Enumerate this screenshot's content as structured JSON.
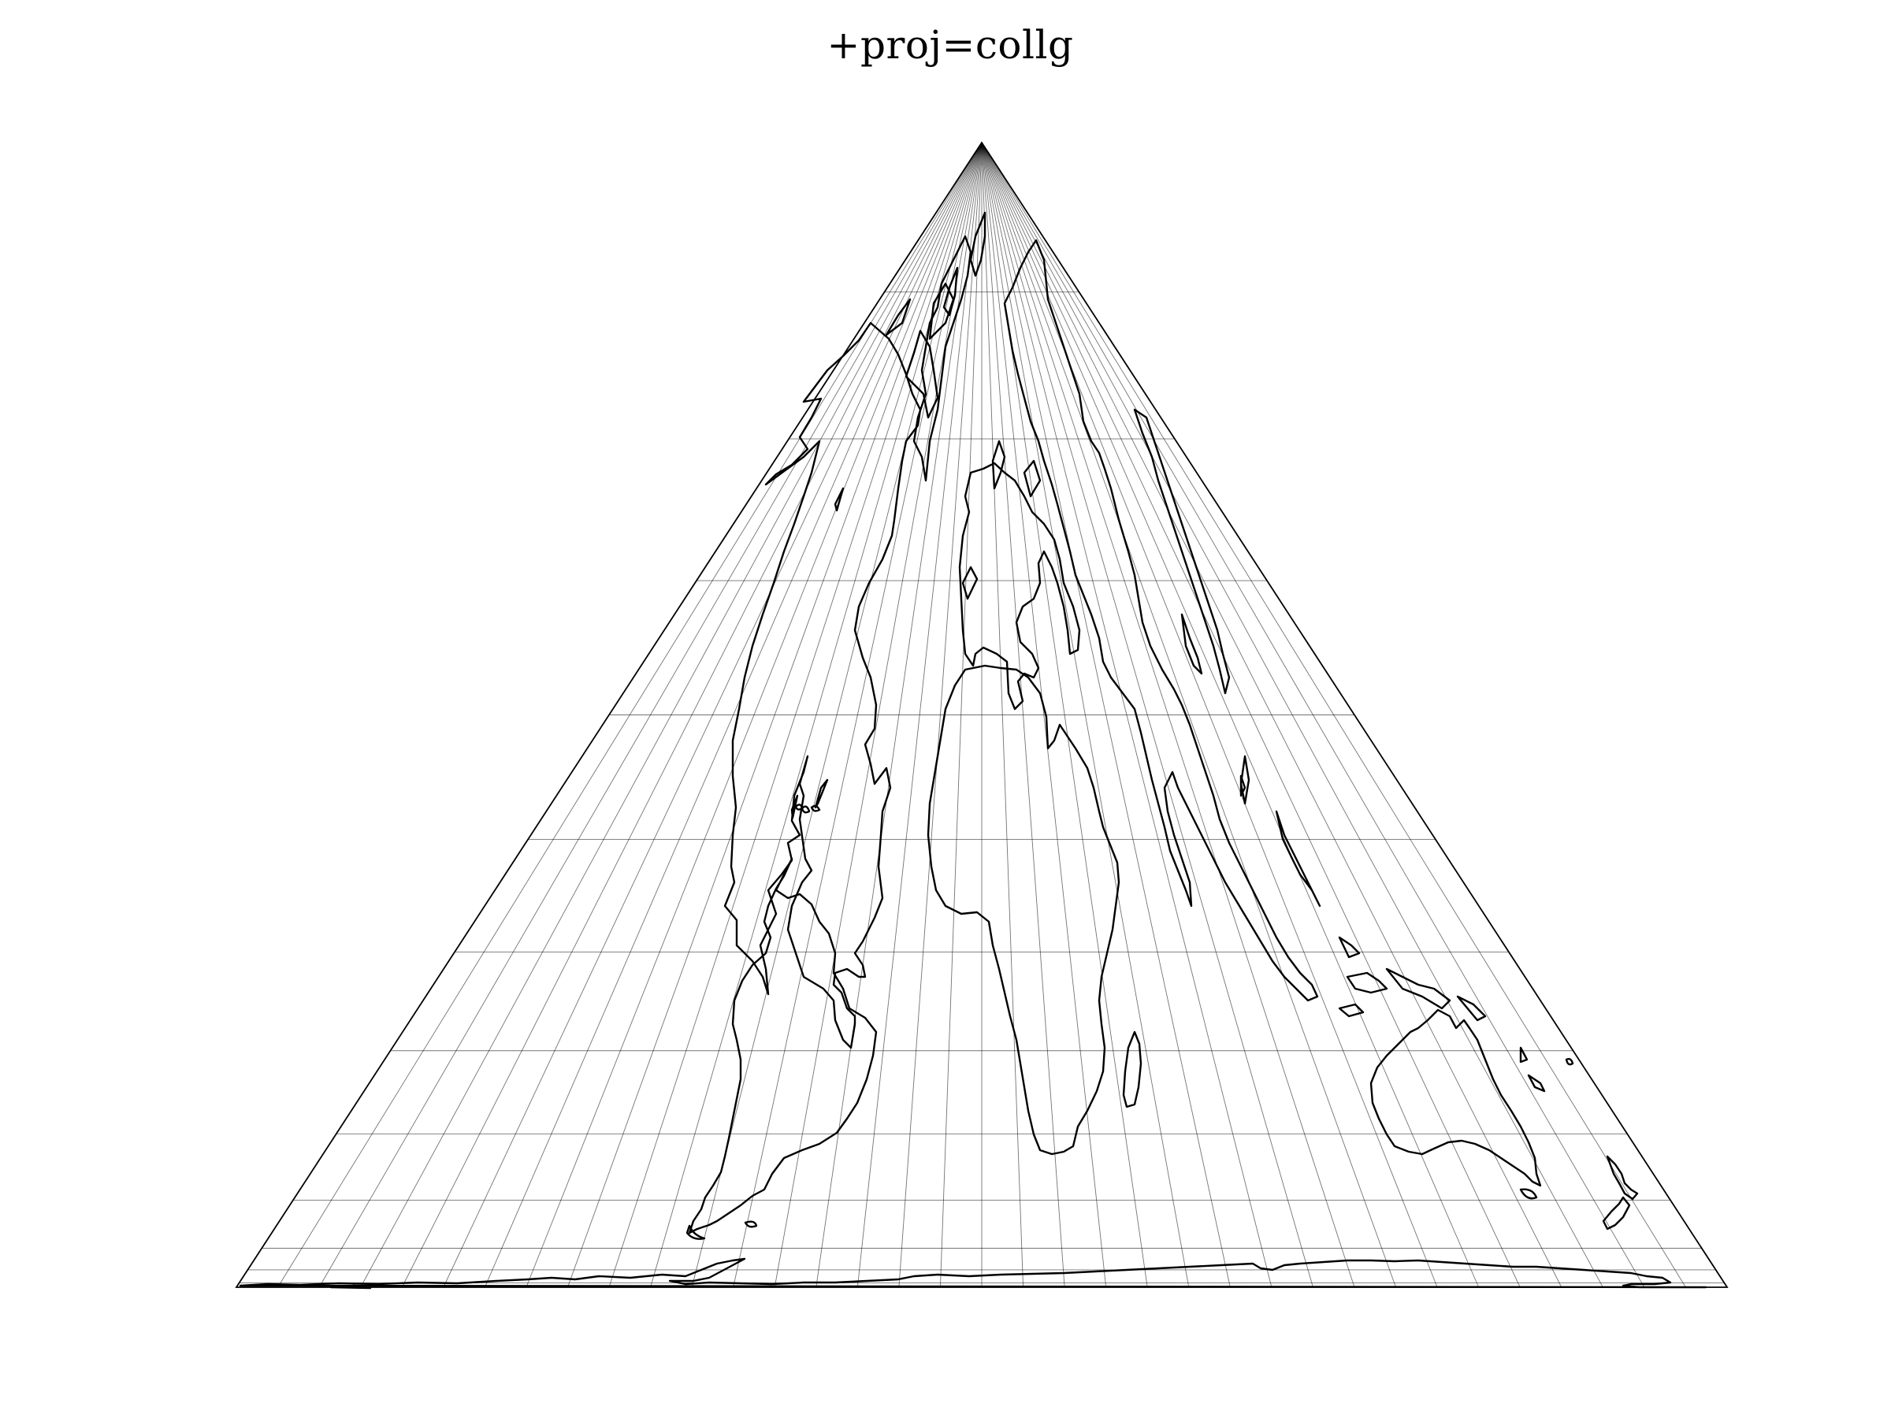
{
  "title": "+proj=collg",
  "map": {
    "projection": "collg",
    "graticule": {
      "meridian_step_deg": 10,
      "parallels_deg": [
        -80,
        -70,
        -60,
        -45,
        -30,
        -15,
        0,
        15,
        30,
        45,
        60,
        75
      ]
    },
    "colors": {
      "coastline": "#000000",
      "graticule": "#808080",
      "background": "#ffffff"
    },
    "features": [
      "north-america-coastline",
      "greenland-coastline",
      "south-america-coastline",
      "europe-coastline",
      "africa-coastline",
      "madagascar-coastline",
      "asia-coastline",
      "australia-coastline",
      "new-zealand-coastline",
      "antarctica-coastline"
    ]
  }
}
